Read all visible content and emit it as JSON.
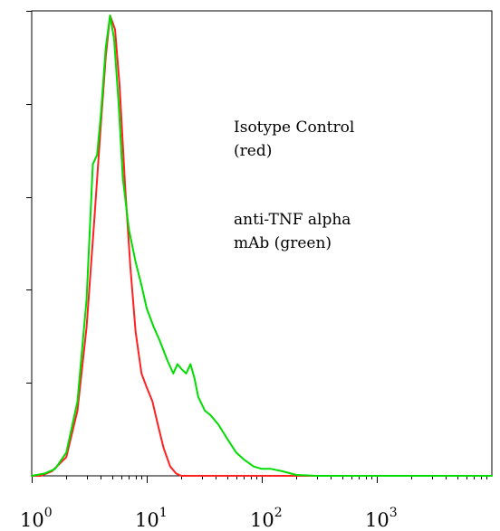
{
  "chart_data": {
    "type": "line",
    "x_scale": "log",
    "xlim": [
      1,
      10000
    ],
    "ylim": [
      0,
      100
    ],
    "x_ticks": [
      {
        "base": "10",
        "exp": "0"
      },
      {
        "base": "10",
        "exp": "1"
      },
      {
        "base": "10",
        "exp": "2"
      },
      {
        "base": "10",
        "exp": "3"
      }
    ],
    "y_tick_count": 5,
    "grid": false,
    "annotations": [
      [
        "Isotype Control",
        "(red)"
      ],
      [
        "anti-TNF alpha",
        "mAb (green)"
      ]
    ],
    "series": [
      {
        "color": "#ff2020",
        "x": [
          1.0,
          1.2,
          1.5,
          2.0,
          2.5,
          3.0,
          3.5,
          4.0,
          4.4,
          4.8,
          5.3,
          5.8,
          6.5,
          7.2,
          8.0,
          9.0,
          10.0,
          11.2,
          12.5,
          14.0,
          16.0,
          18.0,
          20.0,
          22.0,
          25.0,
          10000.0
        ],
        "y": [
          0.0,
          0.0,
          1.0,
          4.0,
          14.0,
          32.0,
          55.0,
          76.0,
          90.0,
          99.0,
          96.0,
          84.0,
          62.0,
          45.0,
          31.0,
          22.0,
          19.0,
          16.0,
          11.0,
          6.0,
          2.0,
          0.5,
          0.0,
          0.0,
          0.0,
          0.0
        ]
      },
      {
        "color": "#00dd00",
        "x": [
          1.0,
          1.3,
          1.6,
          2.0,
          2.5,
          3.0,
          3.4,
          3.7,
          4.0,
          4.4,
          4.8,
          5.2,
          5.7,
          6.2,
          7.0,
          8.0,
          9.0,
          10.0,
          11.5,
          13.0,
          15.0,
          17.0,
          18.5,
          20.0,
          22.0,
          24.0,
          26.0,
          28.0,
          32.0,
          36.0,
          42.0,
          50.0,
          60.0,
          70.0,
          85.0,
          100.0,
          120.0,
          150.0,
          200.0,
          300.0,
          10000.0
        ],
        "y": [
          0.0,
          0.5,
          1.5,
          5.0,
          16.0,
          38.0,
          67.0,
          69.0,
          78.0,
          92.0,
          99.0,
          94.0,
          80.0,
          64.0,
          53.0,
          46.0,
          41.0,
          36.0,
          32.0,
          29.0,
          25.0,
          22.0,
          24.0,
          23.0,
          22.0,
          24.0,
          21.0,
          17.0,
          14.0,
          13.0,
          11.0,
          8.0,
          5.0,
          3.5,
          2.0,
          1.5,
          1.5,
          1.0,
          0.2,
          0.0,
          0.0
        ]
      }
    ]
  }
}
